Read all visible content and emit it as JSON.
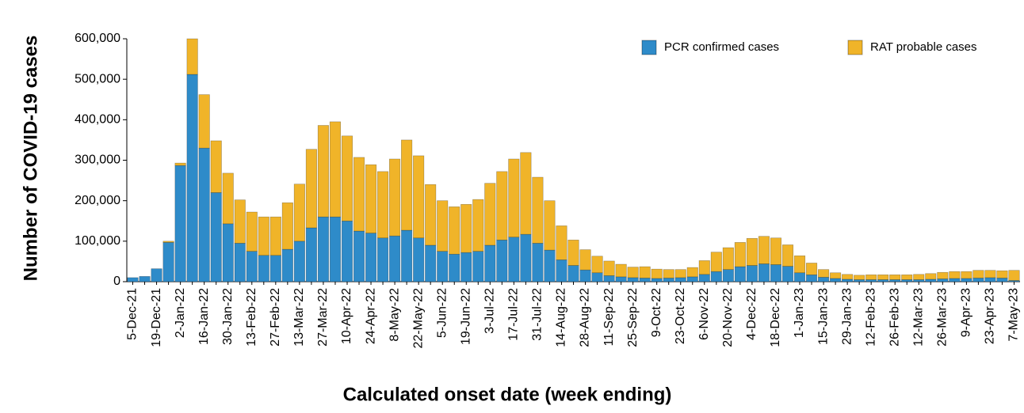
{
  "chart_data": {
    "type": "stacked_bar",
    "y_axis_label": "Number of COVID-19 cases",
    "x_axis_label": "Calculated onset date (week ending)",
    "categories": [
      "5-Dec-21",
      null,
      "19-Dec-21",
      null,
      "2-Jan-22",
      null,
      "16-Jan-22",
      null,
      "30-Jan-22",
      null,
      "13-Feb-22",
      null,
      "27-Feb-22",
      null,
      "13-Mar-22",
      null,
      "27-Mar-22",
      null,
      "10-Apr-22",
      null,
      "24-Apr-22",
      null,
      "8-May-22",
      null,
      "22-May-22",
      null,
      "5-Jun-22",
      null,
      "19-Jun-22",
      null,
      "3-Jul-22",
      null,
      "17-Jul-22",
      null,
      "31-Jul-22",
      null,
      "14-Aug-22",
      null,
      "28-Aug-22",
      null,
      "11-Sep-22",
      null,
      "25-Sep-22",
      null,
      "9-Oct-22",
      null,
      "23-Oct-22",
      null,
      "6-Nov-22",
      null,
      "20-Nov-22",
      null,
      "4-Dec-22",
      null,
      "18-Dec-22",
      null,
      "1-Jan-23",
      null,
      "15-Jan-23",
      null,
      "29-Jan-23",
      null,
      "12-Feb-23",
      null,
      "26-Feb-23",
      null,
      "12-Mar-23",
      null,
      "26-Mar-23",
      null,
      "9-Apr-23",
      null,
      "23-Apr-23",
      null,
      "7-May-23"
    ],
    "series": [
      {
        "name": "PCR confirmed cases",
        "color": "#2e8bc9",
        "values": [
          10000,
          13000,
          32000,
          97000,
          287000,
          512000,
          330000,
          220000,
          143000,
          95000,
          75000,
          65000,
          65000,
          80000,
          100000,
          133000,
          160000,
          160000,
          150000,
          125000,
          120000,
          108000,
          113000,
          127000,
          108000,
          90000,
          75000,
          68000,
          72000,
          75000,
          90000,
          103000,
          110000,
          117000,
          95000,
          78000,
          54000,
          40000,
          29000,
          22000,
          15000,
          12000,
          10000,
          9000,
          8000,
          9000,
          10000,
          12000,
          18000,
          25000,
          30000,
          37000,
          40000,
          44000,
          42000,
          38000,
          22000,
          17000,
          11000,
          8000,
          6000,
          5000,
          5000,
          5000,
          5000,
          5000,
          5000,
          6000,
          7000,
          8000,
          8000,
          9000,
          10000,
          9000,
          3000
        ]
      },
      {
        "name": "RAT probable cases",
        "color": "#f0b429",
        "values": [
          0,
          0,
          0,
          3000,
          6000,
          88000,
          132000,
          128000,
          125000,
          107000,
          97000,
          95000,
          95000,
          115000,
          141000,
          194000,
          226000,
          235000,
          210000,
          182000,
          169000,
          164000,
          190000,
          223000,
          203000,
          150000,
          125000,
          117000,
          119000,
          128000,
          153000,
          169000,
          193000,
          202000,
          163000,
          122000,
          84000,
          63000,
          50000,
          41000,
          36000,
          31000,
          26000,
          28000,
          23000,
          21000,
          20000,
          23000,
          34000,
          48000,
          54000,
          60000,
          67000,
          68000,
          66000,
          53000,
          42000,
          29000,
          19000,
          14000,
          12000,
          11000,
          12000,
          12000,
          12000,
          12000,
          13000,
          14000,
          16000,
          17000,
          17000,
          19000,
          18000,
          18000,
          25000
        ]
      }
    ],
    "ylim": [
      0,
      600000
    ],
    "yticks": [
      0,
      {
        "value": 100000,
        "label": "100,000"
      },
      {
        "value": 200000,
        "label": "200,000"
      },
      {
        "value": 300000,
        "label": "300,000"
      },
      {
        "value": 400000,
        "label": "400,000"
      },
      {
        "value": 500000,
        "label": "500,000"
      },
      {
        "value": 600000,
        "label": "600,000"
      }
    ],
    "legend": "top-right"
  }
}
